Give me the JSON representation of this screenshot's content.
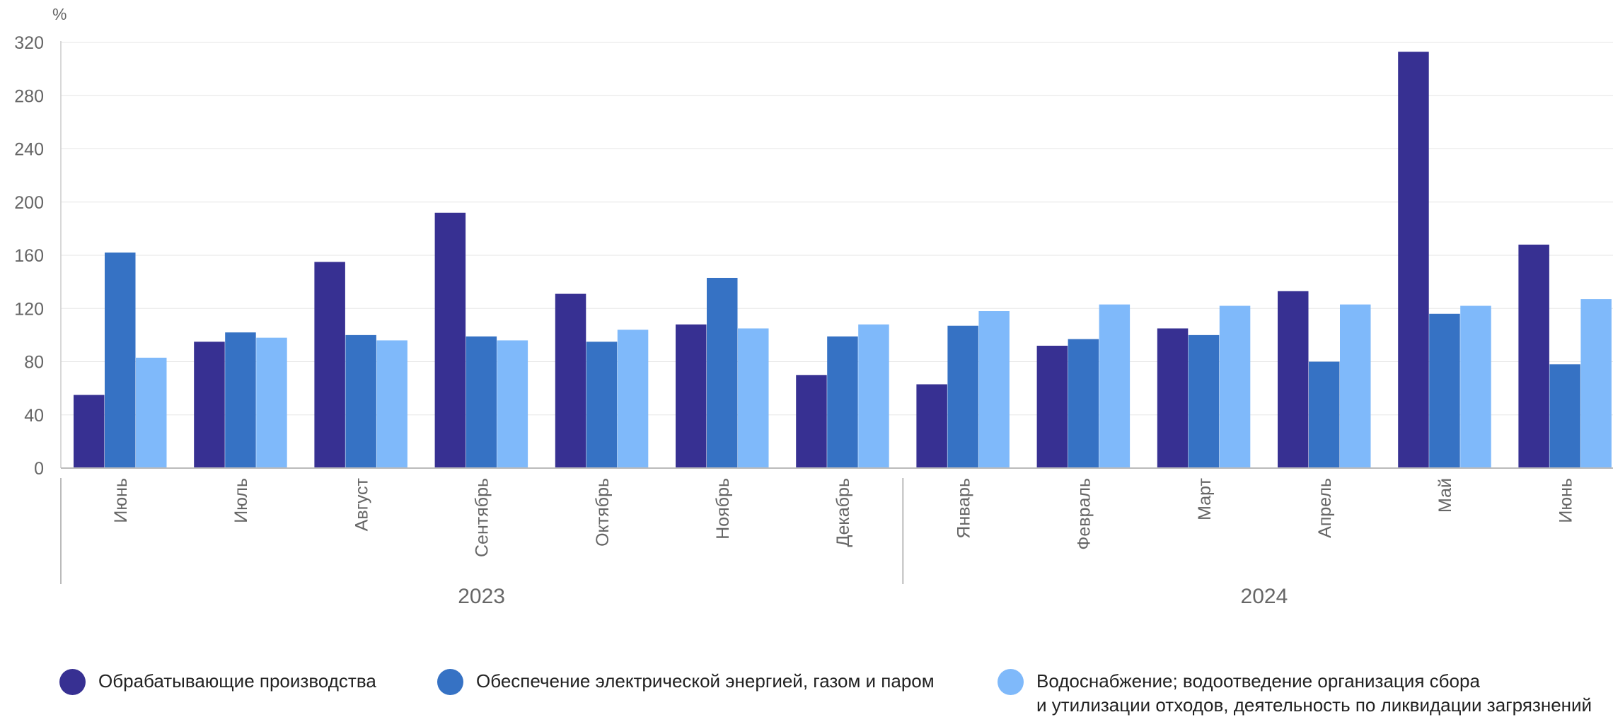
{
  "chart_data": {
    "type": "bar",
    "unit_label": "%",
    "ylim": [
      0,
      320
    ],
    "yticks": [
      0,
      40,
      80,
      120,
      160,
      200,
      240,
      280,
      320
    ],
    "grid": true,
    "legend_position": "bottom",
    "categories": [
      "Июнь",
      "Июль",
      "Август",
      "Сентябрь",
      "Октябрь",
      "Ноябрь",
      "Декабрь",
      "Январь",
      "Февраль",
      "Март",
      "Апрель",
      "Май",
      "Июнь"
    ],
    "groups": [
      {
        "label": "2023",
        "start": 0,
        "end": 6
      },
      {
        "label": "2024",
        "start": 7,
        "end": 12
      }
    ],
    "series": [
      {
        "name": "Обрабатывающие производства",
        "color": "#373092",
        "values": [
          55,
          95,
          155,
          192,
          131,
          108,
          70,
          63,
          92,
          105,
          133,
          313,
          168
        ]
      },
      {
        "name": "Обеспечение электрической энергией, газом и паром",
        "color": "#3672c4",
        "values": [
          162,
          102,
          100,
          99,
          95,
          143,
          99,
          107,
          97,
          100,
          80,
          116,
          78
        ]
      },
      {
        "name": "Водоснабжение; водоотведение организация сбора\nи утилизации отходов, деятельность по ликвидации загрязнений",
        "color": "#7fb9fa",
        "values": [
          83,
          98,
          96,
          96,
          104,
          105,
          108,
          118,
          123,
          122,
          123,
          122,
          127
        ]
      }
    ]
  }
}
